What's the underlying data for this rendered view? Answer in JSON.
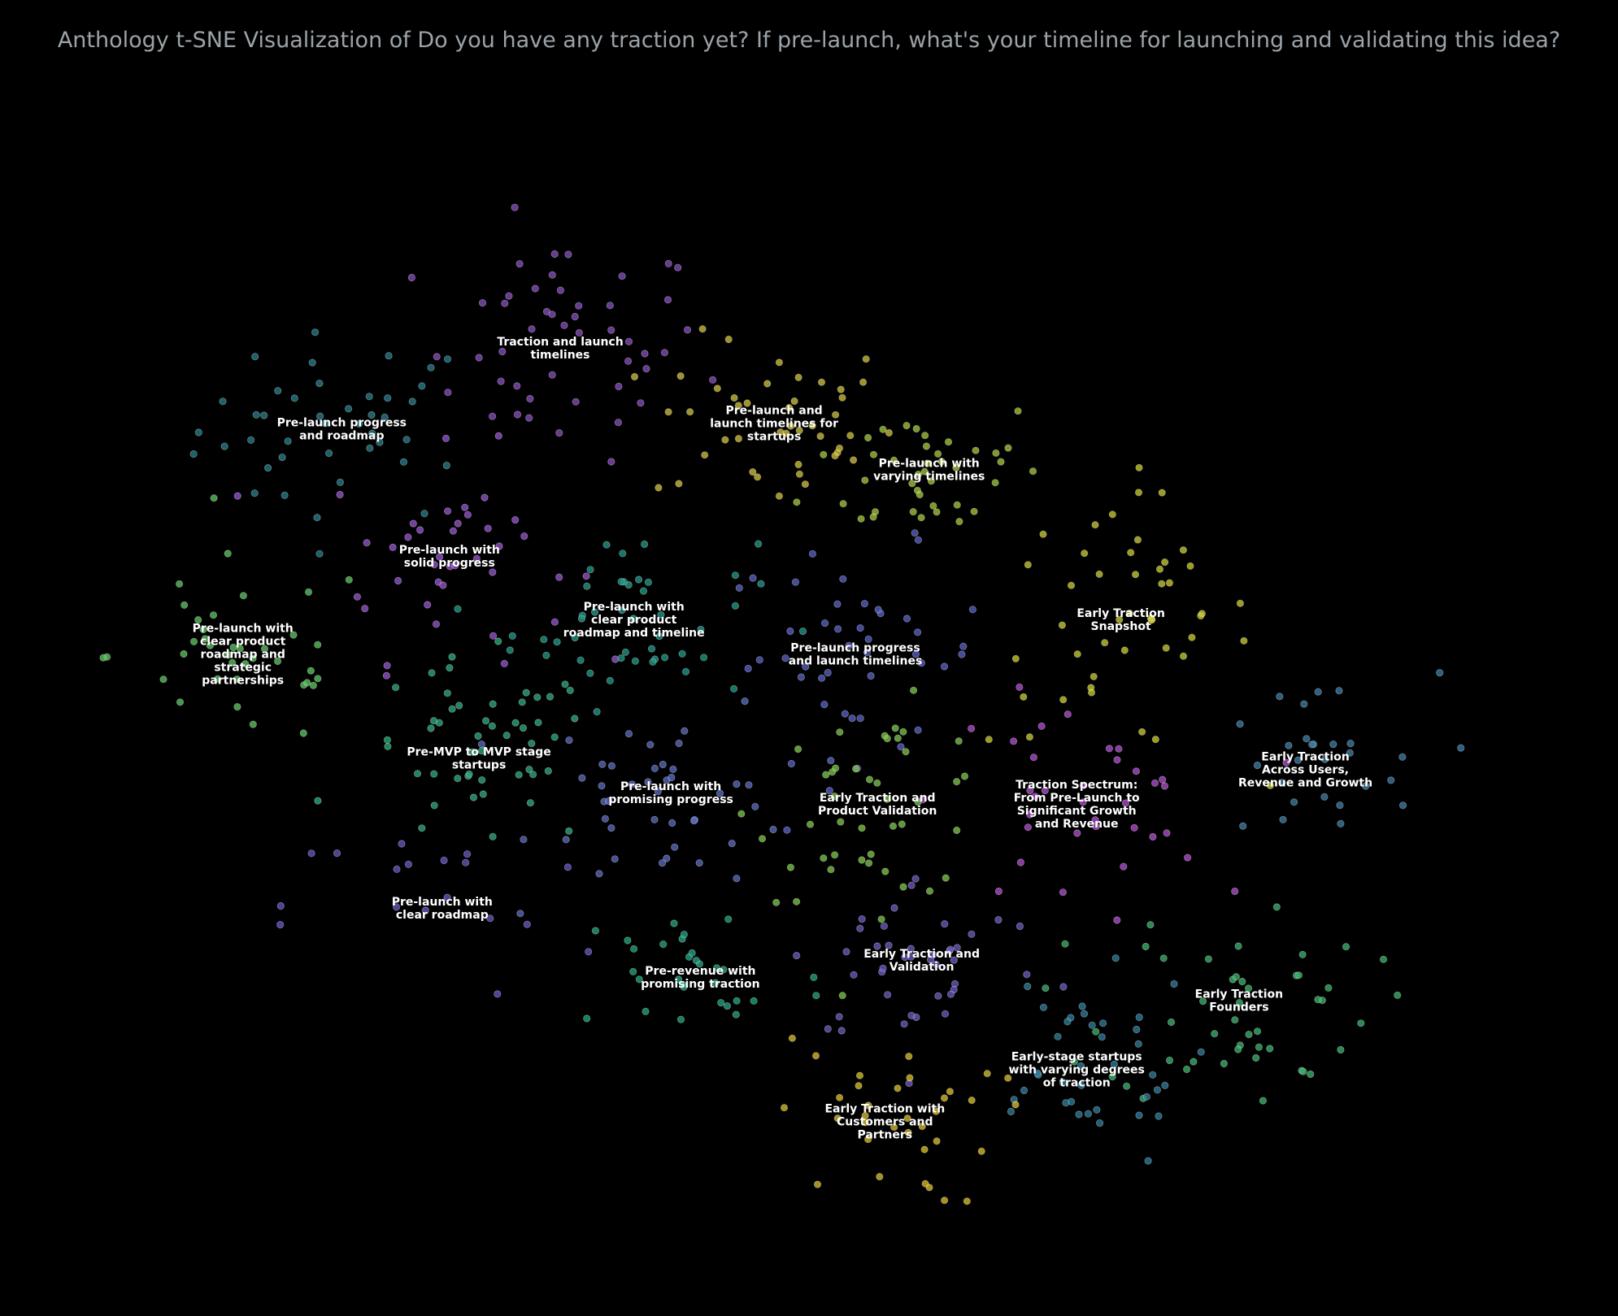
{
  "chart_data": {
    "type": "scatter",
    "title": "Anthology t-SNE Visualization of Do you have any traction yet? If pre-launch, what's your timeline for launching and validating this idea?",
    "xlabel": "",
    "ylabel": "",
    "grid": false,
    "legend": "none",
    "axes_visible": false,
    "xlim": [
      0,
      100
    ],
    "ylim": [
      0,
      100
    ],
    "colors": {
      "background": "#000000",
      "title": "#9aa3a8",
      "label": "#ffffff",
      "viridis_stops": [
        "#440154",
        "#482878",
        "#3e4989",
        "#31688e",
        "#26828e",
        "#1f9e89",
        "#35b779",
        "#6ece58",
        "#b5de2b",
        "#fde725"
      ]
    },
    "clusters": [
      {
        "label": "Pre-launch progress\nand roadmap",
        "center": [
          18.2,
          72.0
        ],
        "spread": [
          6.5,
          5.5
        ],
        "color": "#26828e",
        "count": 42
      },
      {
        "label": "Traction and launch\ntimelines",
        "center": [
          33.0,
          79.0
        ],
        "spread": [
          6.5,
          6.5
        ],
        "color": "#8a4fc4",
        "count": 48
      },
      {
        "label": "Pre-launch and\nlaunch timelines for\nstartups",
        "center": [
          47.5,
          72.5
        ],
        "spread": [
          5.5,
          5.0
        ],
        "color": "#d4c43a",
        "count": 44
      },
      {
        "label": "Pre-launch with\nvarying timelines",
        "center": [
          58.0,
          68.5
        ],
        "spread": [
          5.5,
          4.5
        ],
        "color": "#a7cc3a",
        "count": 40
      },
      {
        "label": "Pre-launch with\nsolid progress",
        "center": [
          25.5,
          61.0
        ],
        "spread": [
          5.5,
          6.0
        ],
        "color": "#9b55d4",
        "count": 40
      },
      {
        "label": "Pre-launch with\nclear product\nroadmap and timeline",
        "center": [
          38.0,
          55.5
        ],
        "spread": [
          5.5,
          5.0
        ],
        "color": "#1f9e89",
        "count": 46
      },
      {
        "label": "Pre-launch progress\nand launch timelines",
        "center": [
          53.0,
          52.5
        ],
        "spread": [
          6.0,
          6.0
        ],
        "color": "#5a63c9",
        "count": 44
      },
      {
        "label": "Early Traction\nSnapshot",
        "center": [
          71.0,
          55.5
        ],
        "spread": [
          6.0,
          7.5
        ],
        "color": "#cfd02f",
        "count": 46
      },
      {
        "label": "Pre-launch with\nclear product\nroadmap and\nstrategic\npartnerships",
        "center": [
          11.5,
          52.5
        ],
        "spread": [
          6.0,
          5.5
        ],
        "color": "#5ec962",
        "count": 38
      },
      {
        "label": "Pre-MVP to MVP stage\nstartups",
        "center": [
          27.5,
          43.5
        ],
        "spread": [
          5.5,
          5.5
        ],
        "color": "#2db07e",
        "count": 50
      },
      {
        "label": "Pre-launch with\npromising progress",
        "center": [
          40.5,
          40.5
        ],
        "spread": [
          6.0,
          5.5
        ],
        "color": "#5b6dc4",
        "count": 44
      },
      {
        "label": "Early Traction and\nProduct Validation",
        "center": [
          54.5,
          39.5
        ],
        "spread": [
          5.5,
          5.5
        ],
        "color": "#7ecb4a",
        "count": 44
      },
      {
        "label": "Traction Spectrum:\nFrom Pre-Launch to\nSignificant Growth\nand Revenue",
        "center": [
          68.0,
          39.5
        ],
        "spread": [
          6.0,
          6.0
        ],
        "color": "#b54fd6",
        "count": 36
      },
      {
        "label": "Early Traction\nAcross Users,\nRevenue and Growth",
        "center": [
          83.5,
          42.5
        ],
        "spread": [
          6.0,
          5.5
        ],
        "color": "#3b80a8",
        "count": 28
      },
      {
        "label": "Pre-launch with\nclear roadmap",
        "center": [
          25.0,
          30.5
        ],
        "spread": [
          7.0,
          5.5
        ],
        "color": "#6a5ac8",
        "count": 18
      },
      {
        "label": "Pre-revenue with\npromising traction",
        "center": [
          42.5,
          24.5
        ],
        "spread": [
          6.0,
          5.0
        ],
        "color": "#22a884",
        "count": 30
      },
      {
        "label": "Early Traction and\nValidation",
        "center": [
          57.5,
          26.0
        ],
        "spread": [
          6.0,
          5.0
        ],
        "color": "#6f5cc6",
        "count": 42
      },
      {
        "label": "Early Traction\nFounders",
        "center": [
          79.0,
          22.5
        ],
        "spread": [
          6.0,
          6.0
        ],
        "color": "#39b76c",
        "count": 48
      },
      {
        "label": "Early-stage startups\nwith varying degrees\nof traction",
        "center": [
          68.0,
          16.5
        ],
        "spread": [
          5.5,
          5.5
        ],
        "color": "#2f7f9f",
        "count": 38
      },
      {
        "label": "Early Traction with\nCustomers and\nPartners",
        "center": [
          55.0,
          12.0
        ],
        "spread": [
          5.0,
          5.0
        ],
        "color": "#e0c329",
        "count": 34
      }
    ]
  }
}
